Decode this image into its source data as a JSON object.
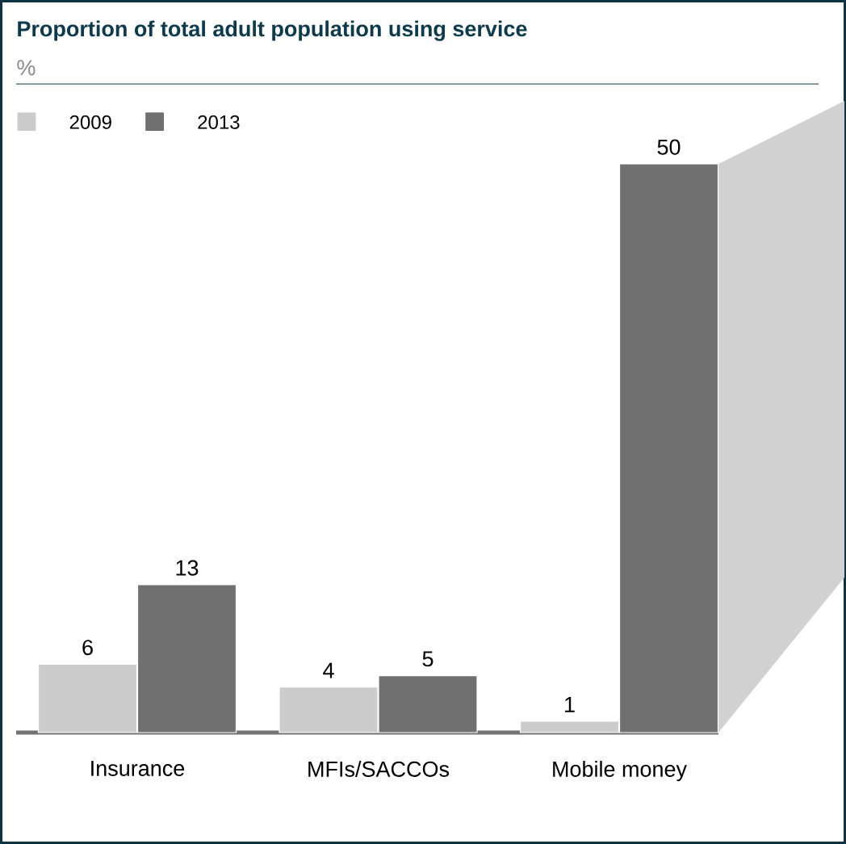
{
  "chart_data": {
    "type": "bar",
    "title": "Proportion of total adult population using service",
    "subtitle": "%",
    "categories": [
      "Insurance",
      "MFIs/SACCOs",
      "Mobile money"
    ],
    "series": [
      {
        "name": "2009",
        "color": "#cccccc",
        "values": [
          6,
          4,
          1
        ]
      },
      {
        "name": "2013",
        "color": "#707070",
        "values": [
          13,
          5,
          50
        ]
      }
    ],
    "data_labels": true,
    "legend": "top left"
  }
}
